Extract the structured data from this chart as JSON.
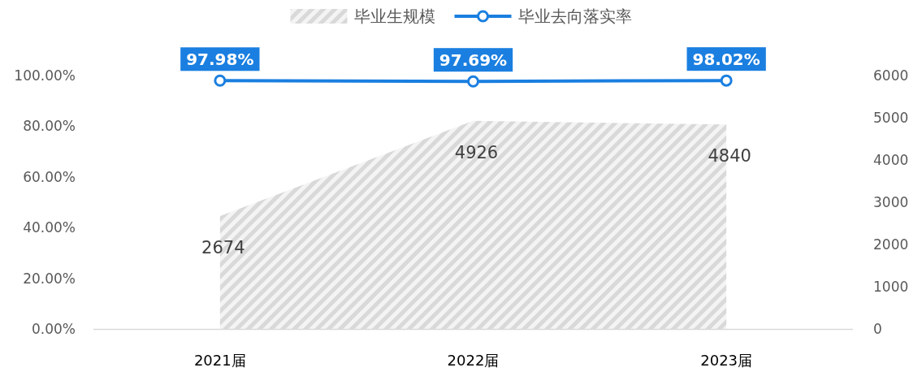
{
  "chart_data": {
    "type": "line",
    "categories": [
      "2021届",
      "2022届",
      "2023届"
    ],
    "series": [
      {
        "name": "毕业生规模",
        "type": "area",
        "axis": "y2",
        "color": "#d9d9d9",
        "values": [
          2674,
          4926,
          4840
        ],
        "value_labels": [
          "2674",
          "4926",
          "4840"
        ]
      },
      {
        "name": "毕业去向落实率",
        "type": "line",
        "axis": "y",
        "color": "#1a7fe0",
        "marker": "circle",
        "values": [
          97.98,
          97.69,
          98.02
        ],
        "value_labels": [
          "97.98%",
          "97.69%",
          "98.02%"
        ]
      }
    ],
    "ylim": [
      0,
      100
    ],
    "yticks": [
      {
        "value": 0,
        "label": "0.00%"
      },
      {
        "value": 20,
        "label": "20.00%"
      },
      {
        "value": 40,
        "label": "40.00%"
      },
      {
        "value": 60,
        "label": "60.00%"
      },
      {
        "value": 80,
        "label": "80.00%"
      },
      {
        "value": 100,
        "label": "100.00%"
      }
    ],
    "y2lim": [
      0,
      6000
    ],
    "y2ticks": [
      0,
      1000,
      2000,
      3000,
      4000,
      5000,
      6000
    ],
    "legend": "top",
    "grid": false
  }
}
